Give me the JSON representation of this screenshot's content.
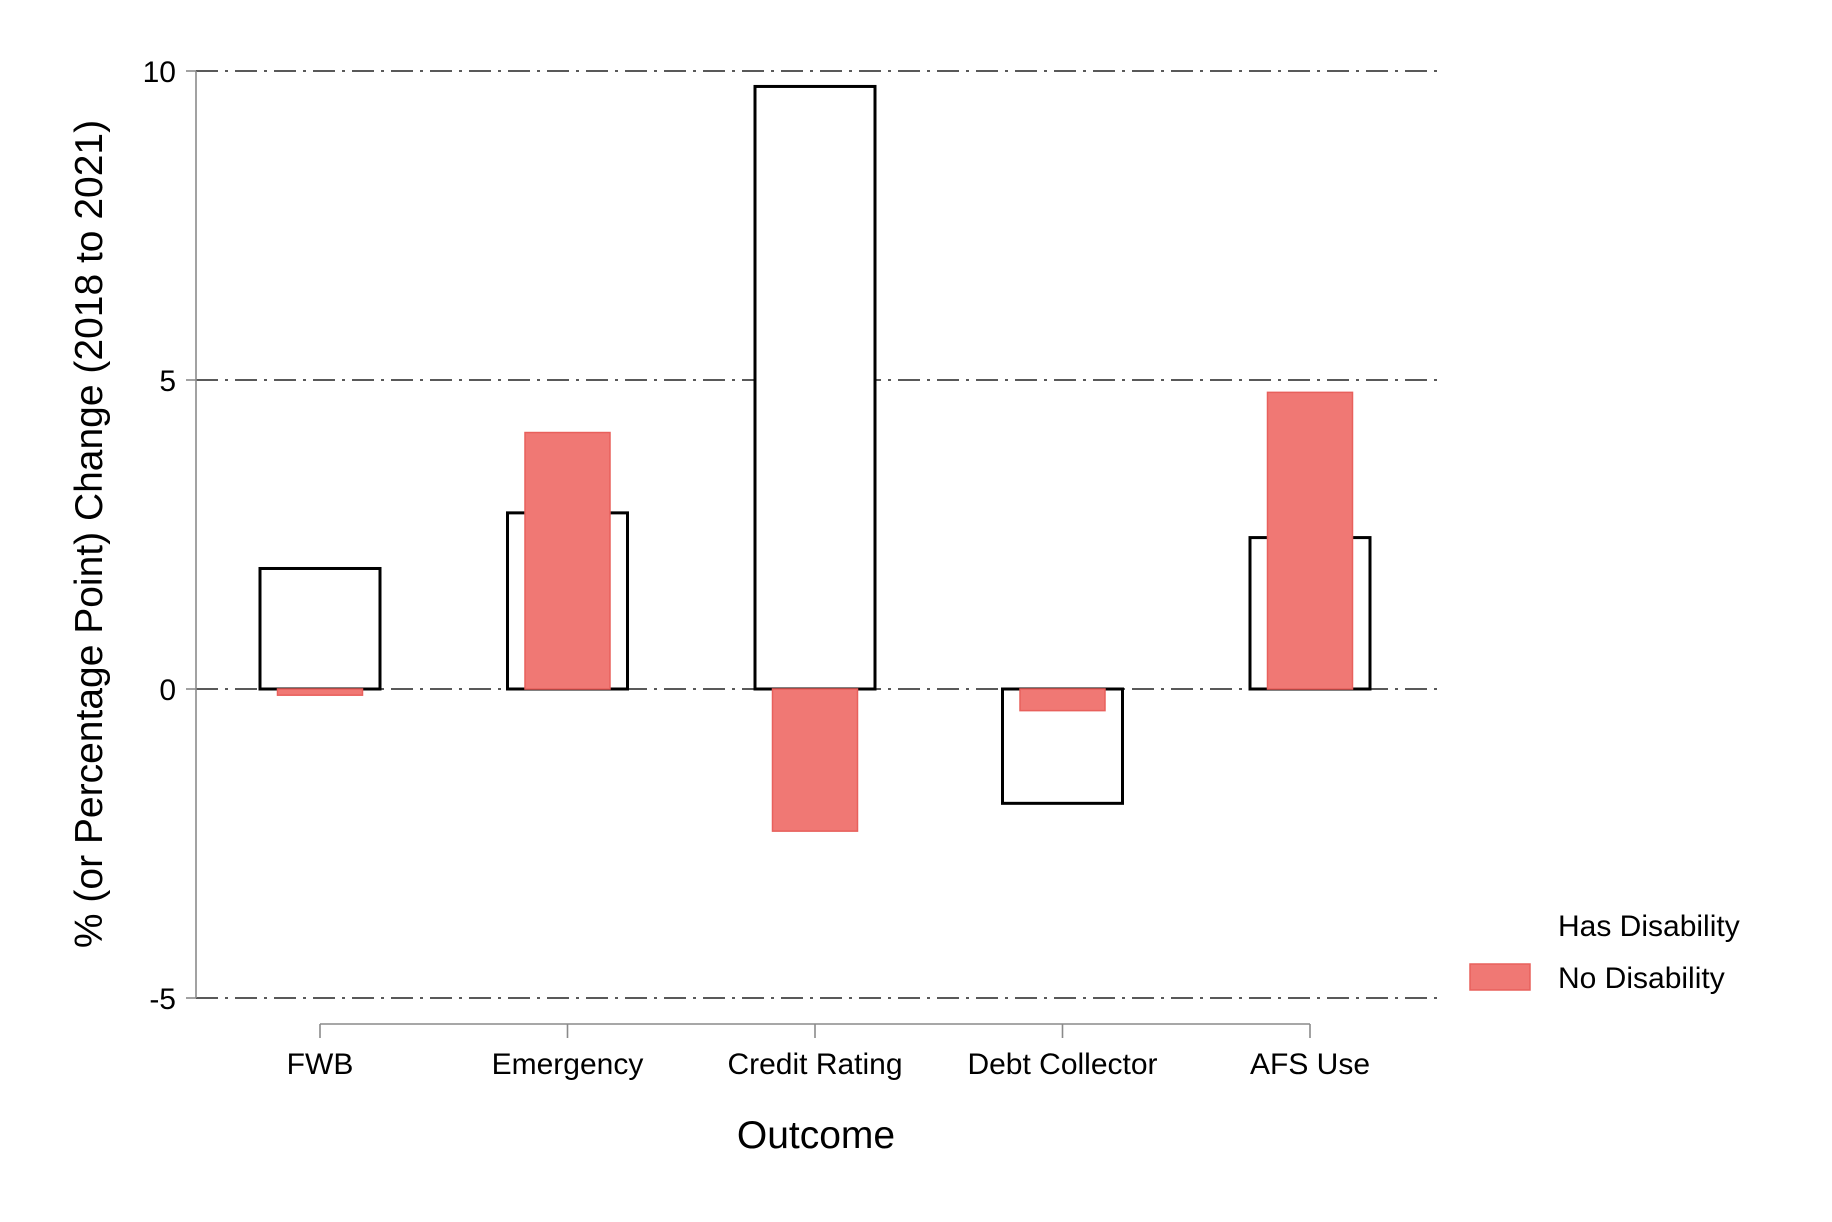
{
  "chart_data": {
    "type": "bar",
    "categories": [
      "FWB",
      "Emergency",
      "Credit Rating",
      "Debt Collector",
      "AFS Use"
    ],
    "series": [
      {
        "name": "Has Disability",
        "values": [
          1.95,
          2.85,
          9.75,
          -1.85,
          2.45
        ],
        "fill": "#ffffff",
        "stroke": "#000000"
      },
      {
        "name": "No Disability",
        "values": [
          -0.1,
          4.15,
          -2.3,
          -0.35,
          4.8
        ],
        "fill": "#f07874",
        "stroke": "#e8605c"
      }
    ],
    "xlabel": "Outcome",
    "ylabel": "% (or Percentage Point) Change (2018 to 2021)",
    "ylim": [
      -5,
      10
    ],
    "yticks": [
      -5,
      0,
      5,
      10
    ],
    "grid": "dash-dot horizontal at y ticks",
    "legend": {
      "placement": "right-bottom",
      "entries": [
        "Has Disability",
        "No Disability"
      ]
    }
  }
}
